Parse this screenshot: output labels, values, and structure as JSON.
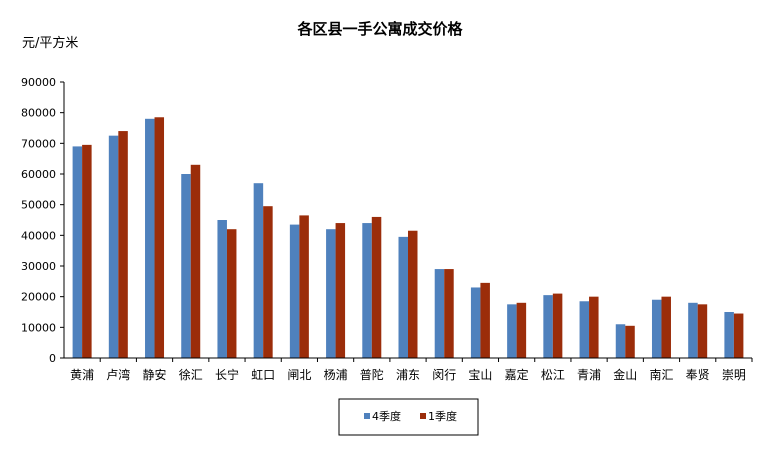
{
  "chart_data": {
    "type": "bar",
    "title": "各区县一手公寓成交价格",
    "ylabel": "元/平方米",
    "xlabel": "",
    "ylim": [
      0,
      90000
    ],
    "yticks": [
      "0",
      "10000",
      "20000",
      "30000",
      "40000",
      "50000",
      "60000",
      "70000",
      "80000",
      "90000"
    ],
    "grid": false,
    "legend_position": "bottom",
    "categories": [
      "黄浦",
      "卢湾",
      "静安",
      "徐汇",
      "长宁",
      "虹口",
      "闸北",
      "杨浦",
      "普陀",
      "浦东",
      "闵行",
      "宝山",
      "嘉定",
      "松江",
      "青浦",
      "金山",
      "南汇",
      "奉贤",
      "崇明"
    ],
    "series": [
      {
        "name": "4季度",
        "color": "#4f81bd",
        "values": [
          69000,
          72500,
          78000,
          60000,
          45000,
          57000,
          43500,
          42000,
          44000,
          39500,
          29000,
          23000,
          17500,
          20500,
          18500,
          11000,
          19000,
          18000,
          15000
        ]
      },
      {
        "name": "1季度",
        "color": "#9b2d0a",
        "values": [
          69500,
          74000,
          78500,
          63000,
          42000,
          49500,
          46500,
          44000,
          46000,
          41500,
          29000,
          24500,
          18000,
          21000,
          20000,
          10500,
          20000,
          17500,
          14500
        ]
      }
    ]
  }
}
